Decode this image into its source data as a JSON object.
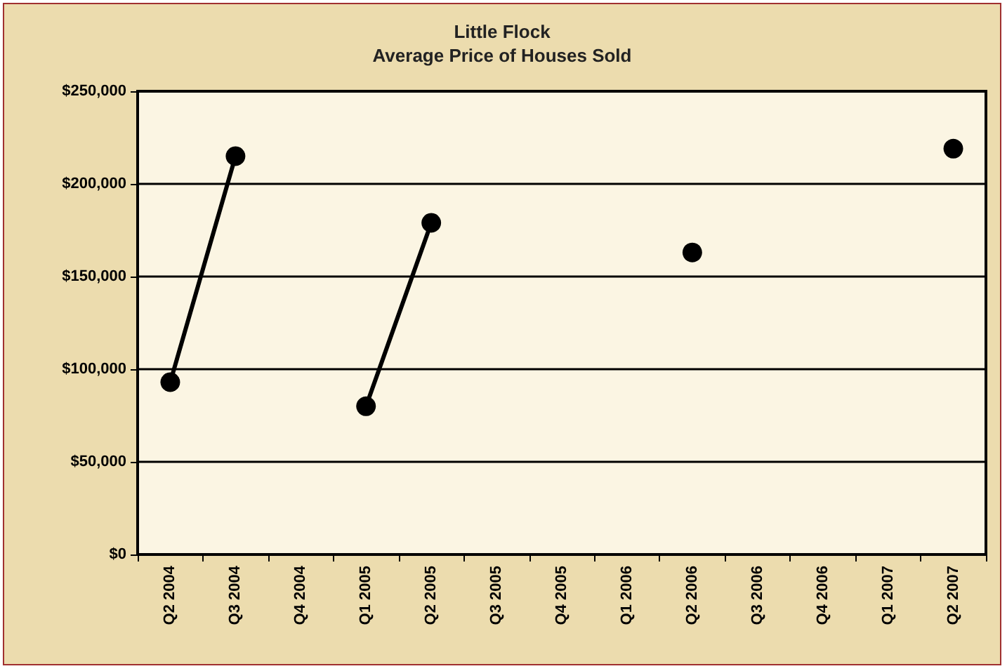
{
  "chart_data": {
    "type": "line",
    "title": "Little Flock\nAverage Price of Houses Sold",
    "categories": [
      "Q2 2004",
      "Q3 2004",
      "Q4 2004",
      "Q1 2005",
      "Q2 2005",
      "Q3 2005",
      "Q4 2005",
      "Q1 2006",
      "Q2 2006",
      "Q3 2006",
      "Q4 2006",
      "Q1 2007",
      "Q2 2007"
    ],
    "series": [
      {
        "color": "#000000",
        "values": [
          93000,
          215000,
          null,
          80000,
          179000,
          null,
          null,
          null,
          163000,
          null,
          null,
          null,
          219000
        ]
      }
    ],
    "ylim": [
      0,
      250000
    ],
    "yticks": [
      {
        "value": 0,
        "label": "$0"
      },
      {
        "value": 50000,
        "label": "$50,000"
      },
      {
        "value": 100000,
        "label": "$100,000"
      },
      {
        "value": 150000,
        "label": "$150,000"
      },
      {
        "value": 200000,
        "label": "$200,000"
      },
      {
        "value": 250000,
        "label": "$250,000"
      }
    ],
    "grid": "y",
    "marker": "circle",
    "line_style": "solid"
  }
}
